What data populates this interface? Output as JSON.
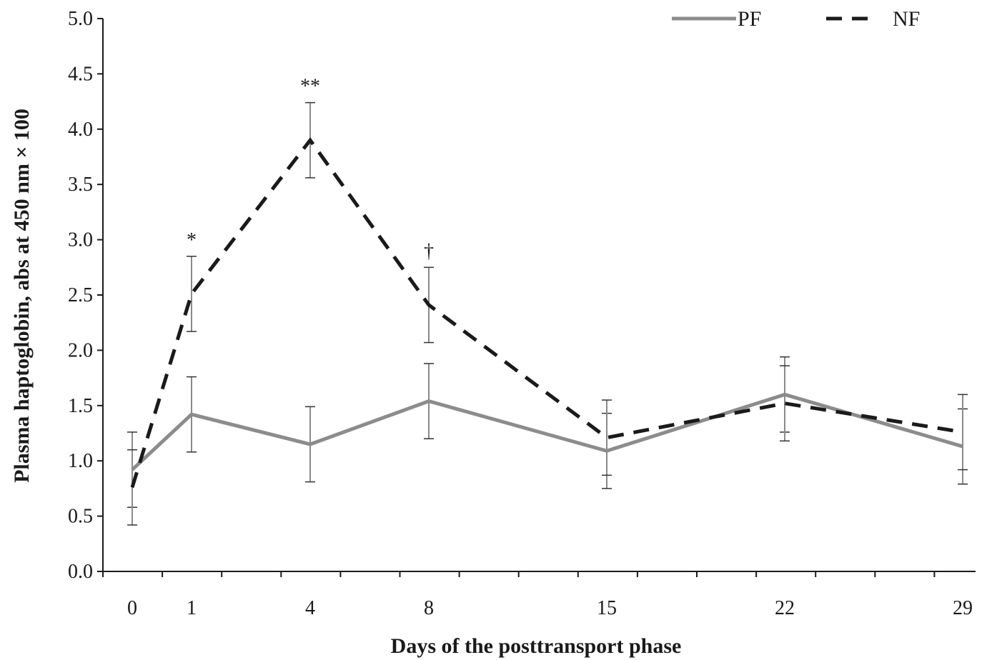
{
  "chart_data": {
    "type": "line",
    "xlabel": "Days of the posttransport phase",
    "ylabel": "Plasma haptoglobin, abs at 450 nm × 100",
    "x": [
      0,
      1,
      4,
      8,
      15,
      22,
      29
    ],
    "x_tick_labels": [
      "0",
      "1",
      "4",
      "8",
      "15",
      "22",
      "29"
    ],
    "ylim": [
      0,
      5
    ],
    "y_ticks": [
      "0.0",
      "0.5",
      "1.0",
      "1.5",
      "2.0",
      "2.5",
      "3.0",
      "3.5",
      "4.0",
      "4.5",
      "5.0"
    ],
    "grid": false,
    "legend_position": "top-right",
    "series": [
      {
        "name": "PF",
        "style": "solid",
        "color": "#8c8c8c",
        "values": [
          0.92,
          1.42,
          1.15,
          1.54,
          1.09,
          1.6,
          1.13
        ],
        "error": [
          0.34,
          0.34,
          0.34,
          0.34,
          0.34,
          0.34,
          0.34
        ]
      },
      {
        "name": "NF",
        "style": "dashed",
        "color": "#1a1a1a",
        "values": [
          0.76,
          2.51,
          3.9,
          2.41,
          1.21,
          1.52,
          1.26
        ],
        "error": [
          0.34,
          0.34,
          0.34,
          0.34,
          0.34,
          0.34,
          0.34
        ]
      }
    ],
    "annotations": [
      {
        "x": 1,
        "text": "*"
      },
      {
        "x": 4,
        "text": "**"
      },
      {
        "x": 8,
        "text": "†"
      }
    ]
  }
}
